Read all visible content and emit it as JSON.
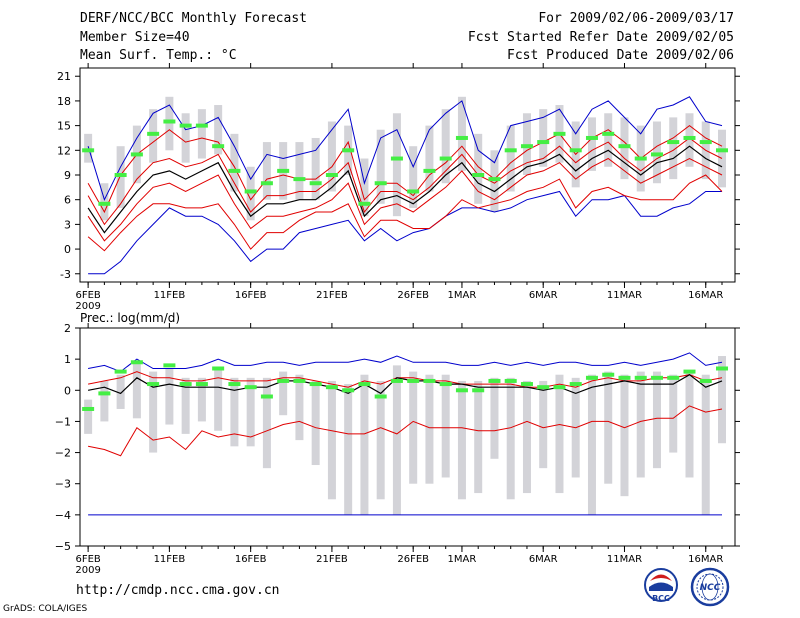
{
  "header": {
    "title": "DERF/NCC/BCC Monthly Forecast",
    "member_size": "Member Size=40",
    "variable": "Mean Surf. Temp.: °C",
    "period": "For 2009/02/06-2009/03/17",
    "started": "Fcst Started Refer Date 2009/02/05",
    "produced": "Fcst Produced Date 2009/02/06"
  },
  "footer": {
    "url": "http://cmdp.ncc.cma.gov.cn",
    "credit": "GrADS: COLA/IGES",
    "logo_left": "BCC",
    "logo_right": "NCC"
  },
  "colors": {
    "box": "#d3d3d8",
    "mean": "#000000",
    "inner": "#e00000",
    "outer": "#0000cc",
    "marker": "#44ee44"
  },
  "chart_data": [
    {
      "type": "line",
      "title": "Mean Surf. Temp.: °C",
      "ylim": [
        -4,
        22
      ],
      "yticks": [
        -3,
        0,
        3,
        6,
        9,
        12,
        15,
        18,
        21
      ],
      "xlim": [
        0.5,
        40.8
      ],
      "xticks": [
        {
          "x": 1,
          "label": "6FEB"
        },
        {
          "x": 6,
          "label": "11FEB"
        },
        {
          "x": 11,
          "label": "16FEB"
        },
        {
          "x": 16,
          "label": "21FEB"
        },
        {
          "x": 21,
          "label": "26FEB"
        },
        {
          "x": 24,
          "label": "1MAR"
        },
        {
          "x": 29,
          "label": "6MAR"
        },
        {
          "x": 34,
          "label": "11MAR"
        },
        {
          "x": 39,
          "label": "16MAR"
        }
      ],
      "year_label": "2009",
      "x": [
        1,
        2,
        3,
        4,
        5,
        6,
        7,
        8,
        9,
        10,
        11,
        12,
        13,
        14,
        15,
        16,
        17,
        18,
        19,
        20,
        21,
        22,
        23,
        24,
        25,
        26,
        27,
        28,
        29,
        30,
        31,
        32,
        33,
        34,
        35,
        36,
        37,
        38,
        39,
        40
      ],
      "series": [
        {
          "name": "max",
          "values": [
            8.0,
            4.5,
            9.0,
            11.5,
            13.0,
            14.5,
            13.0,
            13.5,
            13.0,
            10.0,
            6.0,
            8.5,
            9.0,
            8.5,
            8.5,
            10.0,
            13.0,
            6.0,
            8.0,
            8.0,
            6.5,
            9.0,
            10.5,
            12.5,
            10.0,
            8.5,
            10.5,
            12.0,
            13.0,
            14.0,
            11.5,
            13.5,
            14.5,
            13.0,
            11.0,
            12.5,
            13.5,
            15.0,
            13.5,
            12.5
          ]
        },
        {
          "name": "q75",
          "values": [
            6.5,
            3.0,
            5.5,
            8.5,
            10.5,
            11.0,
            10.0,
            10.5,
            11.5,
            8.0,
            4.5,
            6.5,
            6.5,
            7.0,
            7.0,
            8.5,
            10.5,
            4.5,
            7.0,
            7.0,
            6.0,
            7.5,
            9.5,
            11.5,
            9.0,
            8.0,
            9.5,
            10.5,
            11.0,
            12.5,
            10.5,
            12.0,
            13.0,
            11.0,
            9.5,
            11.0,
            12.0,
            13.5,
            12.0,
            11.0
          ]
        },
        {
          "name": "q50",
          "values": [
            5.0,
            2.0,
            4.5,
            7.0,
            9.0,
            9.5,
            8.5,
            9.5,
            10.5,
            7.0,
            4.0,
            5.5,
            5.5,
            6.0,
            6.0,
            7.5,
            9.5,
            4.0,
            6.0,
            6.5,
            5.5,
            7.0,
            9.0,
            10.5,
            8.0,
            7.0,
            8.5,
            10.0,
            10.5,
            11.5,
            9.5,
            11.0,
            12.0,
            10.5,
            9.0,
            10.5,
            11.0,
            12.5,
            11.0,
            10.0
          ]
        },
        {
          "name": "q25",
          "values": [
            4.0,
            1.0,
            3.0,
            5.5,
            7.5,
            8.0,
            7.0,
            8.0,
            9.0,
            5.5,
            2.5,
            4.0,
            4.0,
            4.5,
            5.0,
            6.0,
            8.0,
            3.0,
            5.0,
            5.5,
            4.5,
            6.0,
            7.5,
            9.5,
            7.0,
            6.0,
            7.5,
            9.0,
            9.5,
            10.5,
            8.5,
            10.0,
            11.0,
            9.5,
            8.0,
            9.0,
            10.0,
            11.0,
            10.0,
            9.0
          ]
        },
        {
          "name": "min",
          "values": [
            1.5,
            -0.2,
            2.0,
            4.0,
            5.5,
            5.5,
            5.0,
            5.0,
            5.5,
            3.0,
            0.0,
            2.0,
            2.0,
            3.5,
            4.5,
            4.5,
            5.5,
            1.5,
            3.5,
            3.5,
            2.5,
            2.5,
            4.0,
            6.0,
            5.0,
            5.5,
            6.0,
            7.0,
            7.5,
            8.5,
            5.0,
            7.0,
            7.5,
            6.5,
            6.0,
            6.0,
            6.0,
            8.0,
            9.0,
            7.0
          ]
        },
        {
          "name": "upper",
          "values": [
            12.5,
            6.0,
            10.0,
            13.5,
            16.5,
            17.5,
            14.5,
            15.0,
            16.0,
            12.5,
            8.5,
            11.5,
            11.0,
            11.5,
            12.0,
            14.5,
            17.0,
            8.0,
            13.5,
            14.5,
            10.0,
            14.5,
            16.5,
            18.0,
            12.0,
            10.5,
            15.0,
            15.5,
            16.0,
            17.0,
            14.0,
            17.0,
            18.0,
            16.0,
            14.0,
            17.0,
            17.5,
            18.5,
            15.5,
            15.0
          ]
        },
        {
          "name": "lower",
          "values": [
            -3.0,
            -3.0,
            -1.5,
            1.0,
            3.0,
            5.0,
            4.0,
            4.0,
            3.0,
            1.0,
            -1.5,
            0.0,
            0.0,
            2.0,
            2.5,
            3.0,
            3.5,
            1.0,
            2.5,
            1.0,
            2.0,
            2.5,
            4.0,
            5.0,
            5.0,
            4.5,
            5.0,
            6.0,
            6.5,
            7.0,
            4.0,
            6.0,
            6.0,
            6.5,
            4.0,
            4.0,
            5.0,
            5.5,
            7.0,
            7.0
          ]
        },
        {
          "name": "box_high",
          "values": [
            14.0,
            8.0,
            12.5,
            15.0,
            17.0,
            18.5,
            16.5,
            17.0,
            17.5,
            14.0,
            10.0,
            13.0,
            13.0,
            13.0,
            13.5,
            15.5,
            15.0,
            11.0,
            14.5,
            16.5,
            12.5,
            15.0,
            17.0,
            18.5,
            14.0,
            12.0,
            15.0,
            16.5,
            17.0,
            17.5,
            15.5,
            16.0,
            16.5,
            16.0,
            15.0,
            15.5,
            16.0,
            16.5,
            15.5,
            14.5
          ]
        },
        {
          "name": "box_low",
          "values": [
            10.5,
            3.5,
            5.0,
            8.0,
            10.5,
            12.0,
            10.5,
            11.0,
            11.5,
            7.0,
            3.5,
            6.0,
            6.0,
            6.0,
            6.0,
            7.0,
            9.0,
            4.0,
            5.5,
            4.0,
            5.0,
            7.0,
            8.0,
            9.5,
            5.5,
            4.5,
            7.0,
            9.0,
            10.0,
            10.5,
            7.5,
            9.5,
            10.0,
            8.5,
            7.0,
            8.0,
            8.5,
            10.0,
            8.5,
            7.5
          ]
        },
        {
          "name": "observed",
          "values": [
            12.0,
            5.5,
            9.0,
            11.5,
            14.0,
            15.5,
            15.0,
            15.0,
            12.5,
            9.5,
            7.0,
            8.0,
            9.5,
            8.5,
            8.0,
            9.0,
            12.0,
            5.5,
            8.0,
            11.0,
            7.0,
            9.5,
            11.0,
            13.5,
            9.0,
            8.5,
            12.0,
            12.5,
            13.0,
            14.0,
            12.0,
            13.5,
            14.0,
            12.5,
            11.0,
            11.5,
            13.0,
            13.5,
            13.0,
            12.0
          ]
        }
      ]
    },
    {
      "type": "line",
      "title": "Prec.: log(mm/d)",
      "ylim": [
        -5,
        2
      ],
      "yticks": [
        -5,
        -4,
        -3,
        -2,
        -1,
        0,
        1,
        2
      ],
      "xlim": [
        0.5,
        40.8
      ],
      "xticks": [
        {
          "x": 1,
          "label": "6FEB"
        },
        {
          "x": 6,
          "label": "11FEB"
        },
        {
          "x": 11,
          "label": "16FEB"
        },
        {
          "x": 16,
          "label": "21FEB"
        },
        {
          "x": 21,
          "label": "26FEB"
        },
        {
          "x": 24,
          "label": "1MAR"
        },
        {
          "x": 29,
          "label": "6MAR"
        },
        {
          "x": 34,
          "label": "11MAR"
        },
        {
          "x": 39,
          "label": "16MAR"
        }
      ],
      "year_label": "2009",
      "x": [
        1,
        2,
        3,
        4,
        5,
        6,
        7,
        8,
        9,
        10,
        11,
        12,
        13,
        14,
        15,
        16,
        17,
        18,
        19,
        20,
        21,
        22,
        23,
        24,
        25,
        26,
        27,
        28,
        29,
        30,
        31,
        32,
        33,
        34,
        35,
        36,
        37,
        38,
        39,
        40
      ],
      "series": [
        {
          "name": "max",
          "values": [
            0.2,
            0.3,
            0.4,
            0.6,
            0.4,
            0.4,
            0.3,
            0.3,
            0.4,
            0.3,
            0.3,
            0.3,
            0.4,
            0.4,
            0.3,
            0.2,
            0.1,
            0.3,
            0.2,
            0.4,
            0.4,
            0.3,
            0.3,
            0.2,
            0.2,
            0.2,
            0.2,
            0.1,
            0.1,
            0.2,
            0.1,
            0.3,
            0.4,
            0.3,
            0.3,
            0.4,
            0.4,
            0.5,
            0.3,
            0.4
          ]
        },
        {
          "name": "q75",
          "values": [
            0.1,
            0.2,
            0.3,
            0.5,
            0.3,
            0.3,
            0.2,
            0.2,
            0.3,
            0.2,
            0.2,
            0.3,
            0.3,
            0.3,
            0.2,
            0.1,
            0.0,
            0.2,
            0.1,
            0.3,
            0.3,
            0.2,
            0.2,
            0.2,
            0.1,
            0.1,
            0.1,
            0.1,
            0.0,
            0.1,
            0.0,
            0.2,
            0.3,
            0.3,
            0.2,
            0.3,
            0.3,
            0.4,
            0.2,
            0.3
          ]
        },
        {
          "name": "q50",
          "values": [
            0.0,
            0.1,
            -0.1,
            0.4,
            0.1,
            0.2,
            0.1,
            0.1,
            0.1,
            0.0,
            0.1,
            0.1,
            0.3,
            0.3,
            0.2,
            0.1,
            -0.1,
            0.2,
            -0.1,
            0.4,
            0.3,
            0.3,
            0.2,
            0.2,
            0.1,
            0.1,
            0.1,
            0.1,
            0.0,
            0.1,
            -0.1,
            0.1,
            0.2,
            0.3,
            0.2,
            0.2,
            0.2,
            0.5,
            0.1,
            0.3
          ]
        },
        {
          "name": "q25",
          "values": [
            -0.1,
            0.0,
            -0.2,
            0.3,
            0.0,
            0.1,
            0.0,
            0.0,
            0.0,
            -0.1,
            0.0,
            0.0,
            0.2,
            0.2,
            0.1,
            0.0,
            -0.2,
            0.1,
            -0.2,
            0.2,
            0.2,
            0.2,
            0.1,
            0.1,
            0.0,
            0.0,
            0.0,
            0.0,
            -0.1,
            0.0,
            -0.2,
            0.0,
            0.1,
            0.2,
            0.1,
            0.1,
            0.1,
            0.3,
            0.0,
            0.2
          ]
        },
        {
          "name": "min",
          "values": [
            -1.8,
            -1.9,
            -2.1,
            -1.2,
            -1.6,
            -1.5,
            -1.9,
            -1.3,
            -1.5,
            -1.4,
            -1.5,
            -1.3,
            -1.1,
            -1.0,
            -1.2,
            -1.3,
            -1.4,
            -1.4,
            -1.2,
            -1.4,
            -1.0,
            -1.2,
            -1.2,
            -1.2,
            -1.3,
            -1.3,
            -1.2,
            -1.0,
            -1.2,
            -1.1,
            -1.2,
            -1.0,
            -1.0,
            -1.2,
            -1.0,
            -0.9,
            -0.9,
            -0.5,
            -0.7,
            -0.6
          ]
        },
        {
          "name": "upper",
          "values": [
            0.7,
            0.8,
            0.6,
            1.0,
            0.7,
            0.7,
            0.7,
            0.8,
            1.0,
            0.8,
            0.8,
            0.9,
            0.9,
            0.8,
            0.9,
            0.9,
            0.9,
            1.0,
            0.9,
            1.1,
            0.9,
            0.9,
            0.9,
            0.8,
            0.8,
            0.9,
            0.8,
            0.9,
            0.8,
            0.9,
            0.9,
            0.8,
            0.8,
            0.9,
            0.8,
            0.9,
            1.0,
            1.2,
            0.8,
            0.9
          ]
        },
        {
          "name": "lower",
          "values": [
            -4.0,
            -4.0,
            -4.0,
            -4.0,
            -4.0,
            -4.0,
            -4.0,
            -4.0,
            -4.0,
            -4.0,
            -4.0,
            -4.0,
            -4.0,
            -4.0,
            -4.0,
            -4.0,
            -4.0,
            -4.0,
            -4.0,
            -4.0,
            -4.0,
            -4.0,
            -4.0,
            -4.0,
            -4.0,
            -4.0,
            -4.0,
            -4.0,
            -4.0,
            -4.0,
            -4.0,
            -4.0,
            -4.0,
            -4.0,
            -4.0,
            -4.0,
            -4.0,
            -4.0,
            -4.0,
            -4.0
          ]
        },
        {
          "name": "box_high",
          "values": [
            -0.3,
            0.3,
            0.5,
            0.9,
            0.6,
            0.7,
            0.4,
            0.4,
            0.7,
            0.4,
            0.4,
            0.4,
            0.6,
            0.5,
            0.3,
            0.3,
            0.2,
            0.5,
            0.3,
            0.8,
            0.6,
            0.5,
            0.5,
            0.3,
            0.3,
            0.4,
            0.4,
            0.3,
            0.3,
            0.5,
            0.4,
            0.5,
            0.6,
            0.5,
            0.6,
            0.6,
            0.5,
            0.6,
            0.5,
            1.1
          ]
        },
        {
          "name": "box_low",
          "values": [
            -1.4,
            -1.0,
            -0.6,
            -0.9,
            -2.0,
            -1.1,
            -1.4,
            -1.0,
            -1.3,
            -1.8,
            -1.8,
            -2.5,
            -0.8,
            -1.6,
            -2.4,
            -3.5,
            -4.0,
            -4.0,
            -3.5,
            -4.0,
            -3.0,
            -3.0,
            -2.8,
            -3.5,
            -3.3,
            -2.2,
            -3.5,
            -3.3,
            -2.5,
            -3.3,
            -2.8,
            -4.0,
            -3.0,
            -3.4,
            -2.8,
            -2.5,
            -2.0,
            -2.8,
            -4.0,
            -1.7
          ]
        },
        {
          "name": "observed",
          "values": [
            -0.6,
            -0.1,
            0.6,
            0.9,
            0.2,
            0.8,
            0.2,
            0.2,
            0.7,
            0.2,
            0.1,
            -0.2,
            0.3,
            0.3,
            0.2,
            0.1,
            0.0,
            0.2,
            -0.2,
            0.3,
            0.3,
            0.3,
            0.2,
            0.0,
            0.0,
            0.3,
            0.3,
            0.2,
            0.1,
            0.1,
            0.2,
            0.4,
            0.5,
            0.4,
            0.4,
            0.4,
            0.4,
            0.6,
            0.3,
            0.7
          ]
        }
      ]
    }
  ]
}
